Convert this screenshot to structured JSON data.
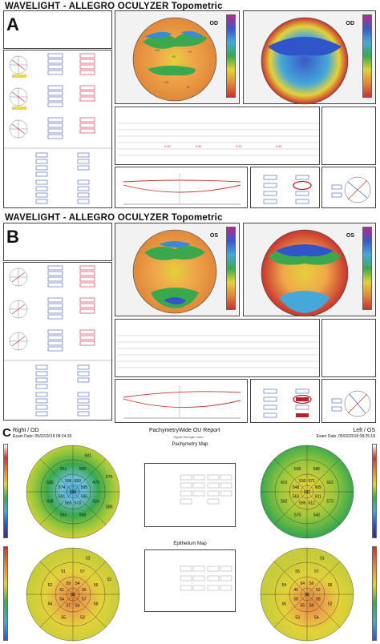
{
  "panelA": {
    "letter": "A",
    "title": "WAVELIGHT  -  ALLEGRO OCULYZER  Topometric",
    "eye_left": "OD",
    "eye_right": "OD"
  },
  "panelB": {
    "letter": "B",
    "title": "WAVELIGHT  -  ALLEGRO OCULYZER  Topometric",
    "eye_left": "OS",
    "eye_right": "OS"
  },
  "panelC": {
    "letter": "C",
    "right_label": "Right / OD",
    "left_label": "Left / OS",
    "exam_date_right": "Exam Date: 05/02/2018 08:24:33",
    "exam_date_left": "Exam Date: 05/02/2018 08:25:18",
    "report_title": "PachymetryWide OU Report",
    "signal_strength": "Signal Strength Index",
    "pachy_map_title": "Pachymetry Map",
    "epi_map_title": "Epithelium Map",
    "od_pachy_values": [
      "634",
      "599",
      "595",
      "595",
      "573",
      "565",
      "591",
      "574",
      "596",
      "506",
      "479",
      "524",
      "568",
      "561",
      "508",
      "530",
      "551",
      "581",
      "575",
      "585"
    ],
    "os_pachy_values": [
      "632",
      "571",
      "605",
      "611",
      "612",
      "595",
      "563",
      "548",
      "530",
      "586",
      "563",
      "573",
      "540",
      "575",
      "582",
      "601",
      "609"
    ],
    "od_epi_values": [
      "55",
      "54",
      "56",
      "57",
      "54",
      "57",
      "54",
      "61",
      "59",
      "57",
      "56",
      "58",
      "53",
      "55",
      "54",
      "52",
      "51",
      "53",
      "52"
    ],
    "os_epi_values": [
      "55",
      "56",
      "52",
      "58",
      "54",
      "55",
      "58",
      "49",
      "54",
      "57",
      "56",
      "52",
      "54",
      "53",
      "55",
      "54",
      "55",
      "53"
    ]
  },
  "colors": {
    "blue": "#2f55c8",
    "green": "#3aa84d",
    "yellow": "#e3d23a",
    "orange": "#e0883a",
    "red": "#c8342f",
    "teal": "#49b8c8"
  }
}
